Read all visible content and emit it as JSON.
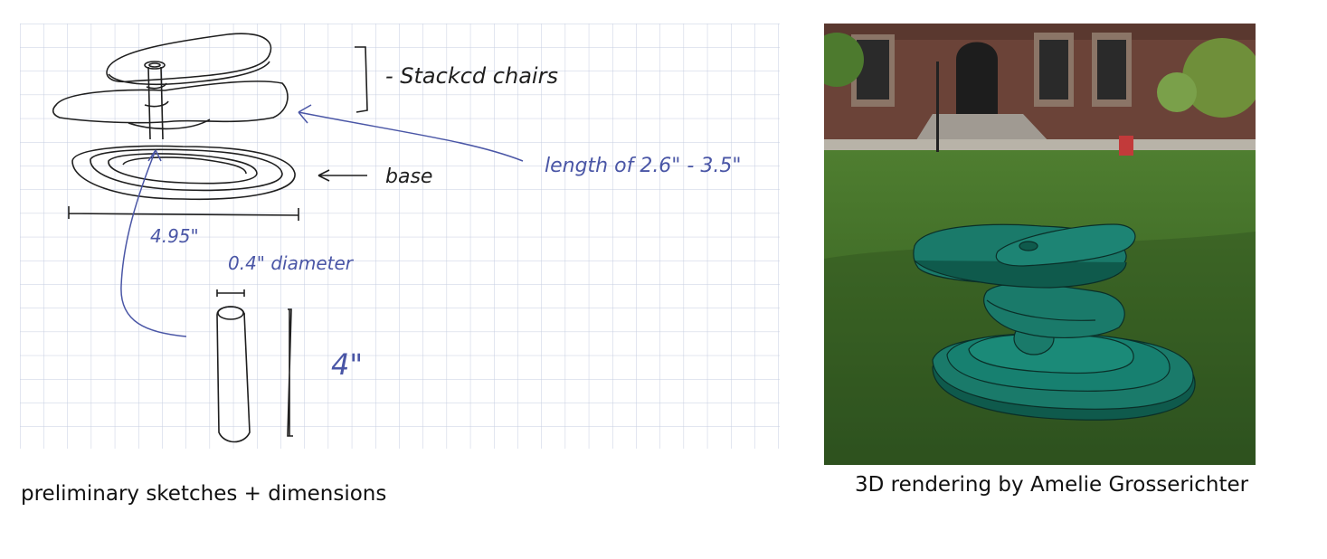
{
  "sketch": {
    "caption": "preliminary sketches + dimensions",
    "annotations": {
      "stacked_chairs": "- Stackcd chairs",
      "base": "base",
      "length": "length of  2.6\" - 3.5\"",
      "width": "4.95\"",
      "diameter": "0.4\" diameter",
      "height": "4\""
    },
    "colors": {
      "grid": "#c5cde0",
      "pen_black": "#1f1f1f",
      "pen_blue": "#4a56a6"
    }
  },
  "render": {
    "caption": "3D rendering by Amelie Grosserichter",
    "colors": {
      "sculpture": "#1a7a6a",
      "sculpture_side": "#0f5a4c",
      "grass": "#3f6e28",
      "building": "#6b4338"
    }
  }
}
